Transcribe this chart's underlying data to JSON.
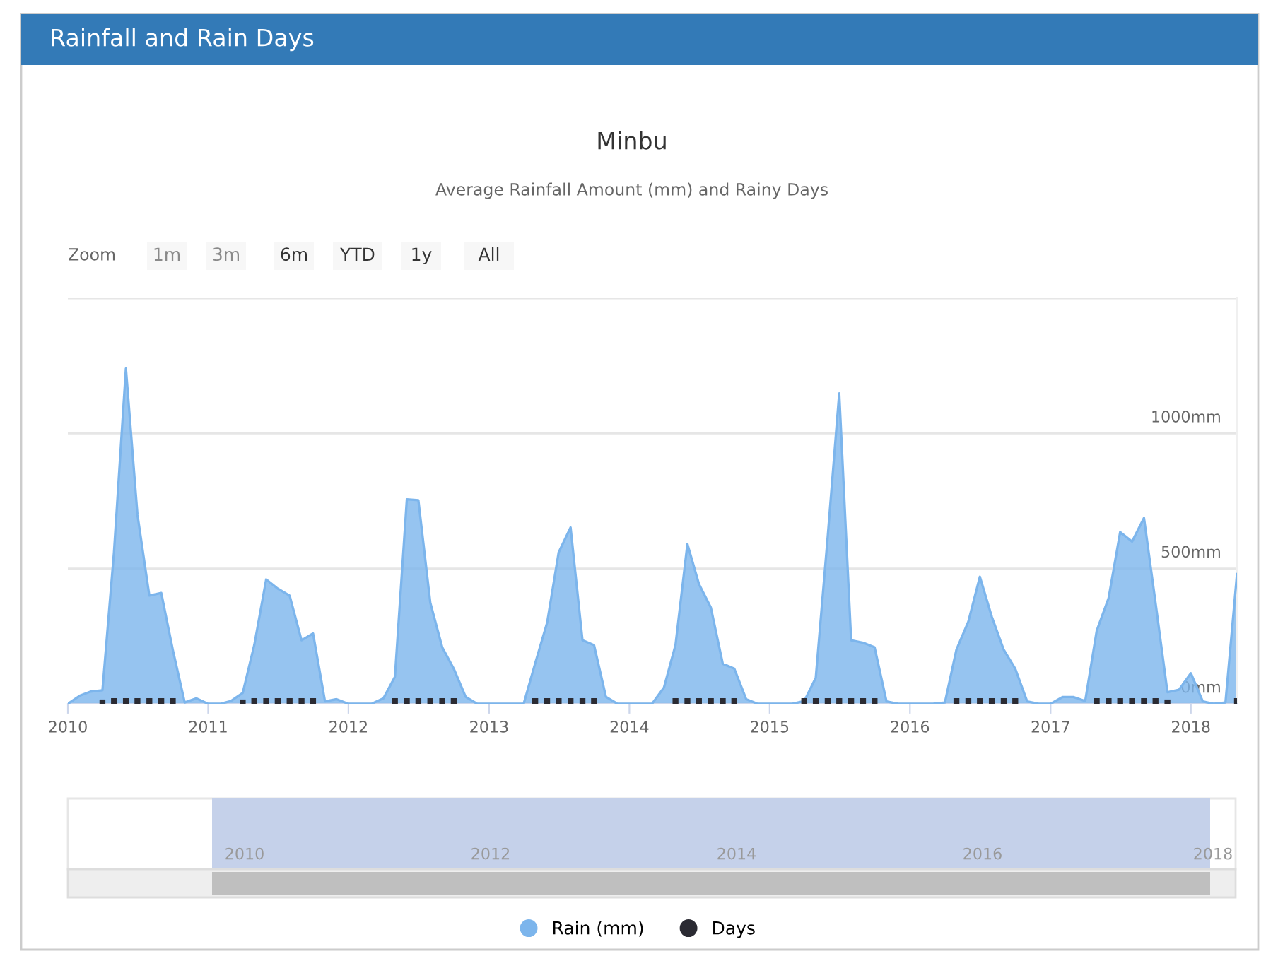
{
  "chart_data": {
    "type": "area",
    "title": "Minbu",
    "subtitle": "Average Rainfall Amount (mm) and Rainy Days",
    "annotations": [
      "Rainfall and Rain Days",
      "Zoom",
      "1m",
      "3m",
      "6m",
      "YTD",
      "1y",
      "All",
      "2010",
      "2012",
      "2014",
      "2016",
      "2018"
    ],
    "x": [
      "2010-01",
      "2010-02",
      "2010-03",
      "2010-04",
      "2010-05",
      "2010-06",
      "2010-07",
      "2010-08",
      "2010-09",
      "2010-10",
      "2010-11",
      "2010-12",
      "2011-01",
      "2011-02",
      "2011-03",
      "2011-04",
      "2011-05",
      "2011-06",
      "2011-07",
      "2011-08",
      "2011-09",
      "2011-10",
      "2011-11",
      "2011-12",
      "2012-01",
      "2012-02",
      "2012-03",
      "2012-04",
      "2012-05",
      "2012-06",
      "2012-07",
      "2012-08",
      "2012-09",
      "2012-10",
      "2012-11",
      "2012-12",
      "2013-01",
      "2013-02",
      "2013-03",
      "2013-04",
      "2013-05",
      "2013-06",
      "2013-07",
      "2013-08",
      "2013-09",
      "2013-10",
      "2013-11",
      "2013-12",
      "2014-01",
      "2014-02",
      "2014-03",
      "2014-04",
      "2014-05",
      "2014-06",
      "2014-07",
      "2014-08",
      "2014-09",
      "2014-10",
      "2014-11",
      "2014-12",
      "2015-01",
      "2015-02",
      "2015-03",
      "2015-04",
      "2015-05",
      "2015-06",
      "2015-07",
      "2015-08",
      "2015-09",
      "2015-10",
      "2015-11",
      "2015-12",
      "2016-01",
      "2016-02",
      "2016-03",
      "2016-04",
      "2016-05",
      "2016-06",
      "2016-07",
      "2016-08",
      "2016-09",
      "2016-10",
      "2016-11",
      "2016-12",
      "2017-01",
      "2017-02",
      "2017-03",
      "2017-04",
      "2017-05",
      "2017-06",
      "2017-07",
      "2017-08",
      "2017-09",
      "2017-10",
      "2017-11",
      "2017-12",
      "2018-01",
      "2018-02",
      "2018-03",
      "2018-04",
      "2018-05"
    ],
    "series": [
      {
        "name": "Rain (mm)",
        "color": "#7cb5ec",
        "marker": "none",
        "values": [
          0,
          30,
          45,
          50,
          560,
          1240,
          700,
          400,
          410,
          200,
          5,
          20,
          0,
          0,
          10,
          40,
          217,
          460,
          426,
          400,
          235,
          260,
          9,
          17,
          0,
          0,
          0,
          20,
          100,
          756,
          753,
          374,
          209,
          130,
          26,
          0,
          0,
          0,
          0,
          0,
          150,
          300,
          560,
          652,
          235,
          217,
          26,
          0,
          0,
          0,
          0,
          60,
          217,
          591,
          443,
          356,
          148,
          130,
          17,
          0,
          0,
          0,
          0,
          10,
          96,
          617,
          1148,
          235,
          226,
          209,
          9,
          0,
          0,
          0,
          0,
          5,
          200,
          304,
          470,
          322,
          200,
          130,
          9,
          0,
          0,
          25,
          25,
          10,
          270,
          391,
          635,
          600,
          687,
          374,
          43,
          52,
          113,
          9,
          0,
          5,
          480
        ]
      },
      {
        "name": "Days",
        "type": "scatter",
        "color": "#2b2b33",
        "marker": "square",
        "values": [
          null,
          null,
          null,
          5,
          10,
          10,
          10,
          10,
          10,
          10,
          null,
          null,
          null,
          null,
          null,
          5,
          10,
          10,
          10,
          10,
          10,
          10,
          null,
          null,
          null,
          null,
          null,
          null,
          10,
          10,
          10,
          10,
          10,
          10,
          null,
          null,
          null,
          null,
          null,
          null,
          10,
          10,
          10,
          10,
          10,
          10,
          null,
          null,
          null,
          null,
          null,
          null,
          10,
          10,
          10,
          10,
          10,
          10,
          null,
          null,
          null,
          null,
          null,
          10,
          10,
          10,
          10,
          10,
          10,
          10,
          null,
          null,
          null,
          null,
          null,
          null,
          10,
          10,
          10,
          10,
          10,
          10,
          null,
          null,
          null,
          null,
          null,
          null,
          10,
          10,
          10,
          10,
          10,
          10,
          5,
          null,
          null,
          null,
          null,
          null,
          10
        ]
      }
    ],
    "xlim": [
      "2010-01",
      "2018-05"
    ],
    "xticks": [
      {
        "value": "2010-01",
        "label": "2010"
      },
      {
        "value": "2011-01",
        "label": "2011"
      },
      {
        "value": "2012-01",
        "label": "2012"
      },
      {
        "value": "2013-01",
        "label": "2013"
      },
      {
        "value": "2014-01",
        "label": "2014"
      },
      {
        "value": "2015-01",
        "label": "2015"
      },
      {
        "value": "2016-01",
        "label": "2016"
      },
      {
        "value": "2017-01",
        "label": "2017"
      },
      {
        "value": "2018-01",
        "label": "2018"
      }
    ],
    "ylim": [
      0,
      1500
    ],
    "yticks": [
      {
        "value": 0,
        "label": "0mm"
      },
      {
        "value": 500,
        "label": "500mm"
      },
      {
        "value": 1000,
        "label": "1000mm"
      },
      {
        "value": 1500,
        "label": null
      }
    ],
    "grid": "y",
    "legend": "bottom"
  }
}
